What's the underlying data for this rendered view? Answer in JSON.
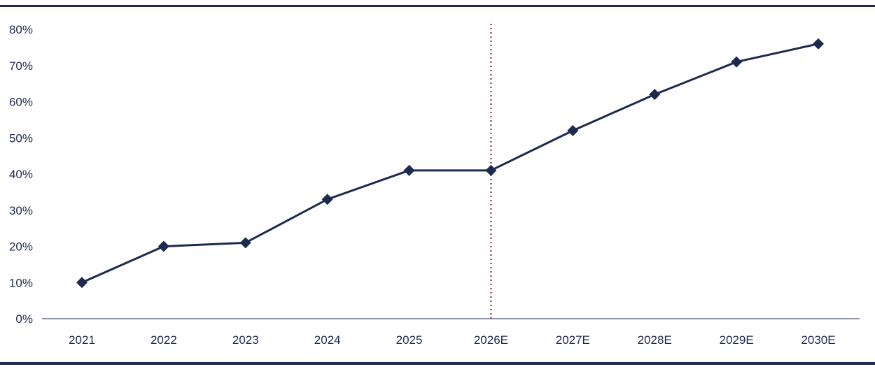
{
  "chart_data": {
    "type": "line",
    "categories": [
      "2021",
      "2022",
      "2023",
      "2024",
      "2025",
      "2026E",
      "2027E",
      "2028E",
      "2029E",
      "2030E"
    ],
    "series": [
      {
        "values": [
          10,
          20,
          21,
          33,
          41,
          41,
          52,
          62,
          71,
          76
        ]
      }
    ],
    "y_ticks": [
      "0%",
      "10%",
      "20%",
      "30%",
      "40%",
      "50%",
      "60%",
      "70%",
      "80%"
    ],
    "ylim": [
      0,
      80
    ],
    "grid": false,
    "marker": "diamond",
    "vertical_reference_at": "2026E",
    "colors": {
      "series": "#1c2a4f",
      "axis_text": "#1c2a4f",
      "border": "#1c2a4f",
      "reference_line": "#8b1f3e",
      "baseline": "#1c2a4f"
    }
  }
}
